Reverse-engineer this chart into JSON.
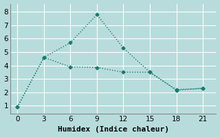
{
  "line1_x": [
    0,
    3,
    6,
    9,
    12,
    15,
    18,
    21
  ],
  "line1_y": [
    0.9,
    4.6,
    5.7,
    7.8,
    5.3,
    3.5,
    2.2,
    2.3
  ],
  "line2_x": [
    0,
    3,
    6,
    9,
    12,
    15,
    18,
    21
  ],
  "line2_y": [
    0.9,
    4.6,
    3.9,
    3.85,
    3.5,
    3.5,
    2.15,
    2.3
  ],
  "color": "#1a7a6e",
  "background_color": "#b8dcdc",
  "grid_color": "#ffffff",
  "xlabel": "Humidex (Indice chaleur)",
  "xlabel_fontsize": 8,
  "xticks": [
    0,
    3,
    6,
    9,
    12,
    15,
    18,
    21
  ],
  "yticks": [
    1,
    2,
    3,
    4,
    5,
    6,
    7,
    8
  ],
  "xlim": [
    -0.8,
    22.5
  ],
  "ylim": [
    0.4,
    8.6
  ],
  "marker": "D",
  "markersize": 2.5,
  "linewidth": 1.0
}
